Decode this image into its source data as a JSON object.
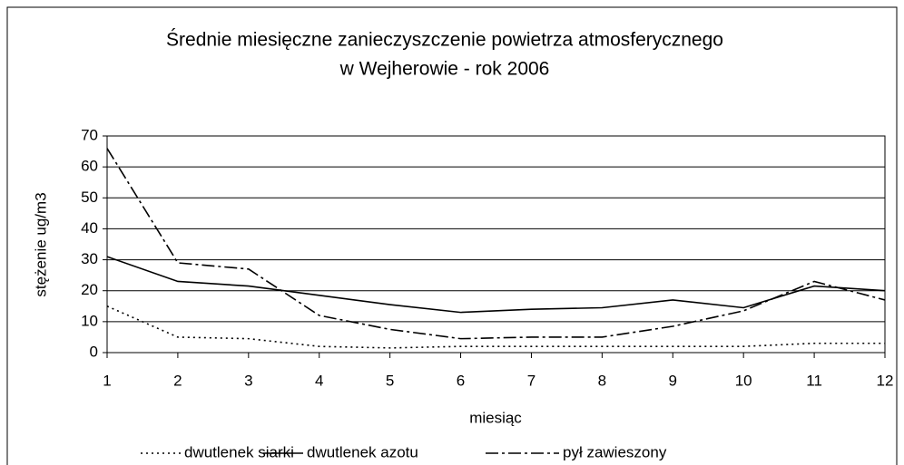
{
  "chart_data": {
    "type": "line",
    "title": [
      "Średnie miesięczne zanieczyszczenie powietrza atmosferycznego",
      "w Wejherowie - rok 2006"
    ],
    "xlabel": "miesiąc",
    "ylabel": "stężenie ug/m3",
    "x": [
      1,
      2,
      3,
      4,
      5,
      6,
      7,
      8,
      9,
      10,
      11,
      12
    ],
    "xlim": [
      1,
      12
    ],
    "xticks": [
      1,
      2,
      3,
      4,
      5,
      6,
      7,
      8,
      9,
      10,
      11,
      12
    ],
    "ylim": [
      0,
      70
    ],
    "yticks": [
      0,
      10,
      20,
      30,
      40,
      50,
      60,
      70
    ],
    "grid": true,
    "legend": "bottom",
    "series": [
      {
        "name": "dwutlenek siarki",
        "color": "#000000",
        "dash": "dotted",
        "values": [
          15,
          5,
          4.5,
          2,
          1.5,
          2,
          2,
          2,
          2,
          2,
          3,
          3
        ]
      },
      {
        "name": "dwutlenek azotu",
        "color": "#000000",
        "dash": "solid",
        "values": [
          31,
          23,
          21.5,
          18.5,
          15.5,
          13,
          14,
          14.5,
          17,
          14.5,
          21.5,
          20
        ]
      },
      {
        "name": "pył zawieszony",
        "color": "#000000",
        "dash": "dash-dot",
        "values": [
          66,
          29,
          27,
          12,
          7.5,
          4.5,
          5,
          5,
          8.5,
          13.5,
          23,
          17
        ]
      }
    ]
  }
}
